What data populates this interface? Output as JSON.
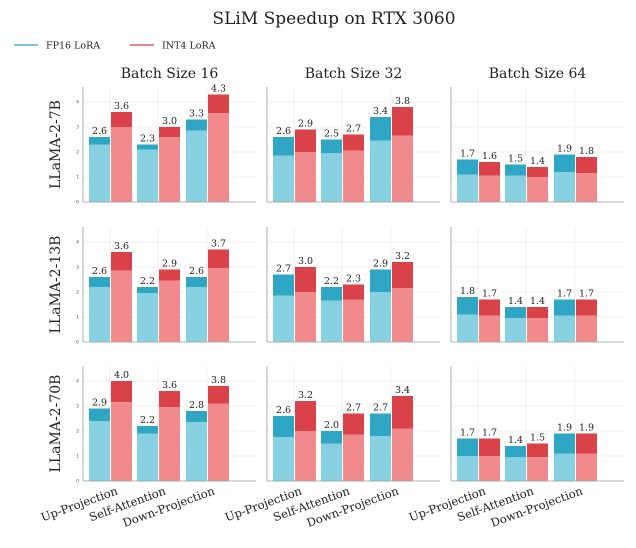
{
  "chart_data": {
    "type": "bar",
    "title": "SLiM Speedup on RTX 3060",
    "legend": {
      "placement": "top-left",
      "entries": [
        {
          "name": "FP16 LoRA",
          "color": "#2ea6c4",
          "base_color": "#86d0e0"
        },
        {
          "name": "INT4 LoRA",
          "color": "#d94248",
          "base_color": "#f08a8c"
        }
      ]
    },
    "categories": [
      "Up-Projection",
      "Self-Attention",
      "Down-Projection"
    ],
    "columns": [
      "Batch Size 16",
      "Batch Size 32",
      "Batch Size 64"
    ],
    "rows": [
      "LLaMA-2-7B",
      "LLaMA-2-13B",
      "LLaMA-2-70B"
    ],
    "ylim": [
      0,
      4.6
    ],
    "yticks": [
      0,
      1,
      2,
      3,
      4
    ],
    "grid": true,
    "panels": [
      {
        "row": 0,
        "col": 0,
        "fp16": [
          2.6,
          2.3,
          3.3
        ],
        "int4": [
          3.6,
          3.0,
          4.3
        ],
        "fp16_base": [
          2.3,
          2.1,
          2.85
        ],
        "int4_base": [
          3.0,
          2.6,
          3.55
        ],
        "fp16_labels": [
          "2.6",
          "2.3",
          "3.3"
        ],
        "int4_labels": [
          "3.6",
          "3.0",
          "4.3"
        ]
      },
      {
        "row": 0,
        "col": 1,
        "fp16": [
          2.6,
          2.5,
          3.4
        ],
        "int4": [
          2.9,
          2.7,
          3.8
        ],
        "fp16_base": [
          1.85,
          1.95,
          2.45
        ],
        "int4_base": [
          2.0,
          2.05,
          2.65
        ],
        "fp16_labels": [
          "2.6",
          "2.5",
          "3.4"
        ],
        "int4_labels": [
          "2.9",
          "2.7",
          "3.8"
        ]
      },
      {
        "row": 0,
        "col": 2,
        "fp16": [
          1.7,
          1.5,
          1.9
        ],
        "int4": [
          1.6,
          1.4,
          1.8
        ],
        "fp16_base": [
          1.1,
          1.05,
          1.2
        ],
        "int4_base": [
          1.05,
          1.0,
          1.15
        ],
        "fp16_labels": [
          "1.7",
          "1.5",
          "1.9"
        ],
        "int4_labels": [
          "1.6",
          "1.4",
          "1.8"
        ]
      },
      {
        "row": 1,
        "col": 0,
        "fp16": [
          2.6,
          2.2,
          2.6
        ],
        "int4": [
          3.6,
          2.9,
          3.7
        ],
        "fp16_base": [
          2.2,
          1.95,
          2.2
        ],
        "int4_base": [
          2.85,
          2.45,
          2.95
        ],
        "fp16_labels": [
          "2.6",
          "2.2",
          "2.6"
        ],
        "int4_labels": [
          "3.6",
          "2.9",
          "3.7"
        ]
      },
      {
        "row": 1,
        "col": 1,
        "fp16": [
          2.7,
          2.2,
          2.9
        ],
        "int4": [
          3.0,
          2.3,
          3.2
        ],
        "fp16_base": [
          1.85,
          1.65,
          2.0
        ],
        "int4_base": [
          2.0,
          1.7,
          2.15
        ],
        "fp16_labels": [
          "2.7",
          "2.2",
          "2.9"
        ],
        "int4_labels": [
          "3.0",
          "2.3",
          "3.2"
        ]
      },
      {
        "row": 1,
        "col": 2,
        "fp16": [
          1.8,
          1.4,
          1.7
        ],
        "int4": [
          1.7,
          1.4,
          1.7
        ],
        "fp16_base": [
          1.1,
          0.95,
          1.05
        ],
        "int4_base": [
          1.05,
          0.95,
          1.05
        ],
        "fp16_labels": [
          "1.8",
          "1.4",
          "1.7"
        ],
        "int4_labels": [
          "1.7",
          "1.4",
          "1.7"
        ]
      },
      {
        "row": 2,
        "col": 0,
        "fp16": [
          2.9,
          2.2,
          2.8
        ],
        "int4": [
          4.0,
          3.6,
          3.8
        ],
        "fp16_base": [
          2.4,
          1.9,
          2.35
        ],
        "int4_base": [
          3.15,
          2.95,
          3.1
        ],
        "fp16_labels": [
          "2.9",
          "2.2",
          "2.8"
        ],
        "int4_labels": [
          "4.0",
          "3.6",
          "3.8"
        ]
      },
      {
        "row": 2,
        "col": 1,
        "fp16": [
          2.6,
          2.0,
          2.7
        ],
        "int4": [
          3.2,
          2.7,
          3.4
        ],
        "fp16_base": [
          1.75,
          1.5,
          1.8
        ],
        "int4_base": [
          2.0,
          1.85,
          2.1
        ],
        "fp16_labels": [
          "2.6",
          "2.0",
          "2.7"
        ],
        "int4_labels": [
          "3.2",
          "2.7",
          "3.4"
        ]
      },
      {
        "row": 2,
        "col": 2,
        "fp16": [
          1.7,
          1.4,
          1.9
        ],
        "int4": [
          1.7,
          1.5,
          1.9
        ],
        "fp16_base": [
          1.0,
          0.95,
          1.1
        ],
        "int4_base": [
          1.0,
          0.95,
          1.1
        ],
        "fp16_labels": [
          "1.7",
          "1.4",
          "1.9"
        ],
        "int4_labels": [
          "1.7",
          "1.5",
          "1.9"
        ]
      }
    ]
  }
}
